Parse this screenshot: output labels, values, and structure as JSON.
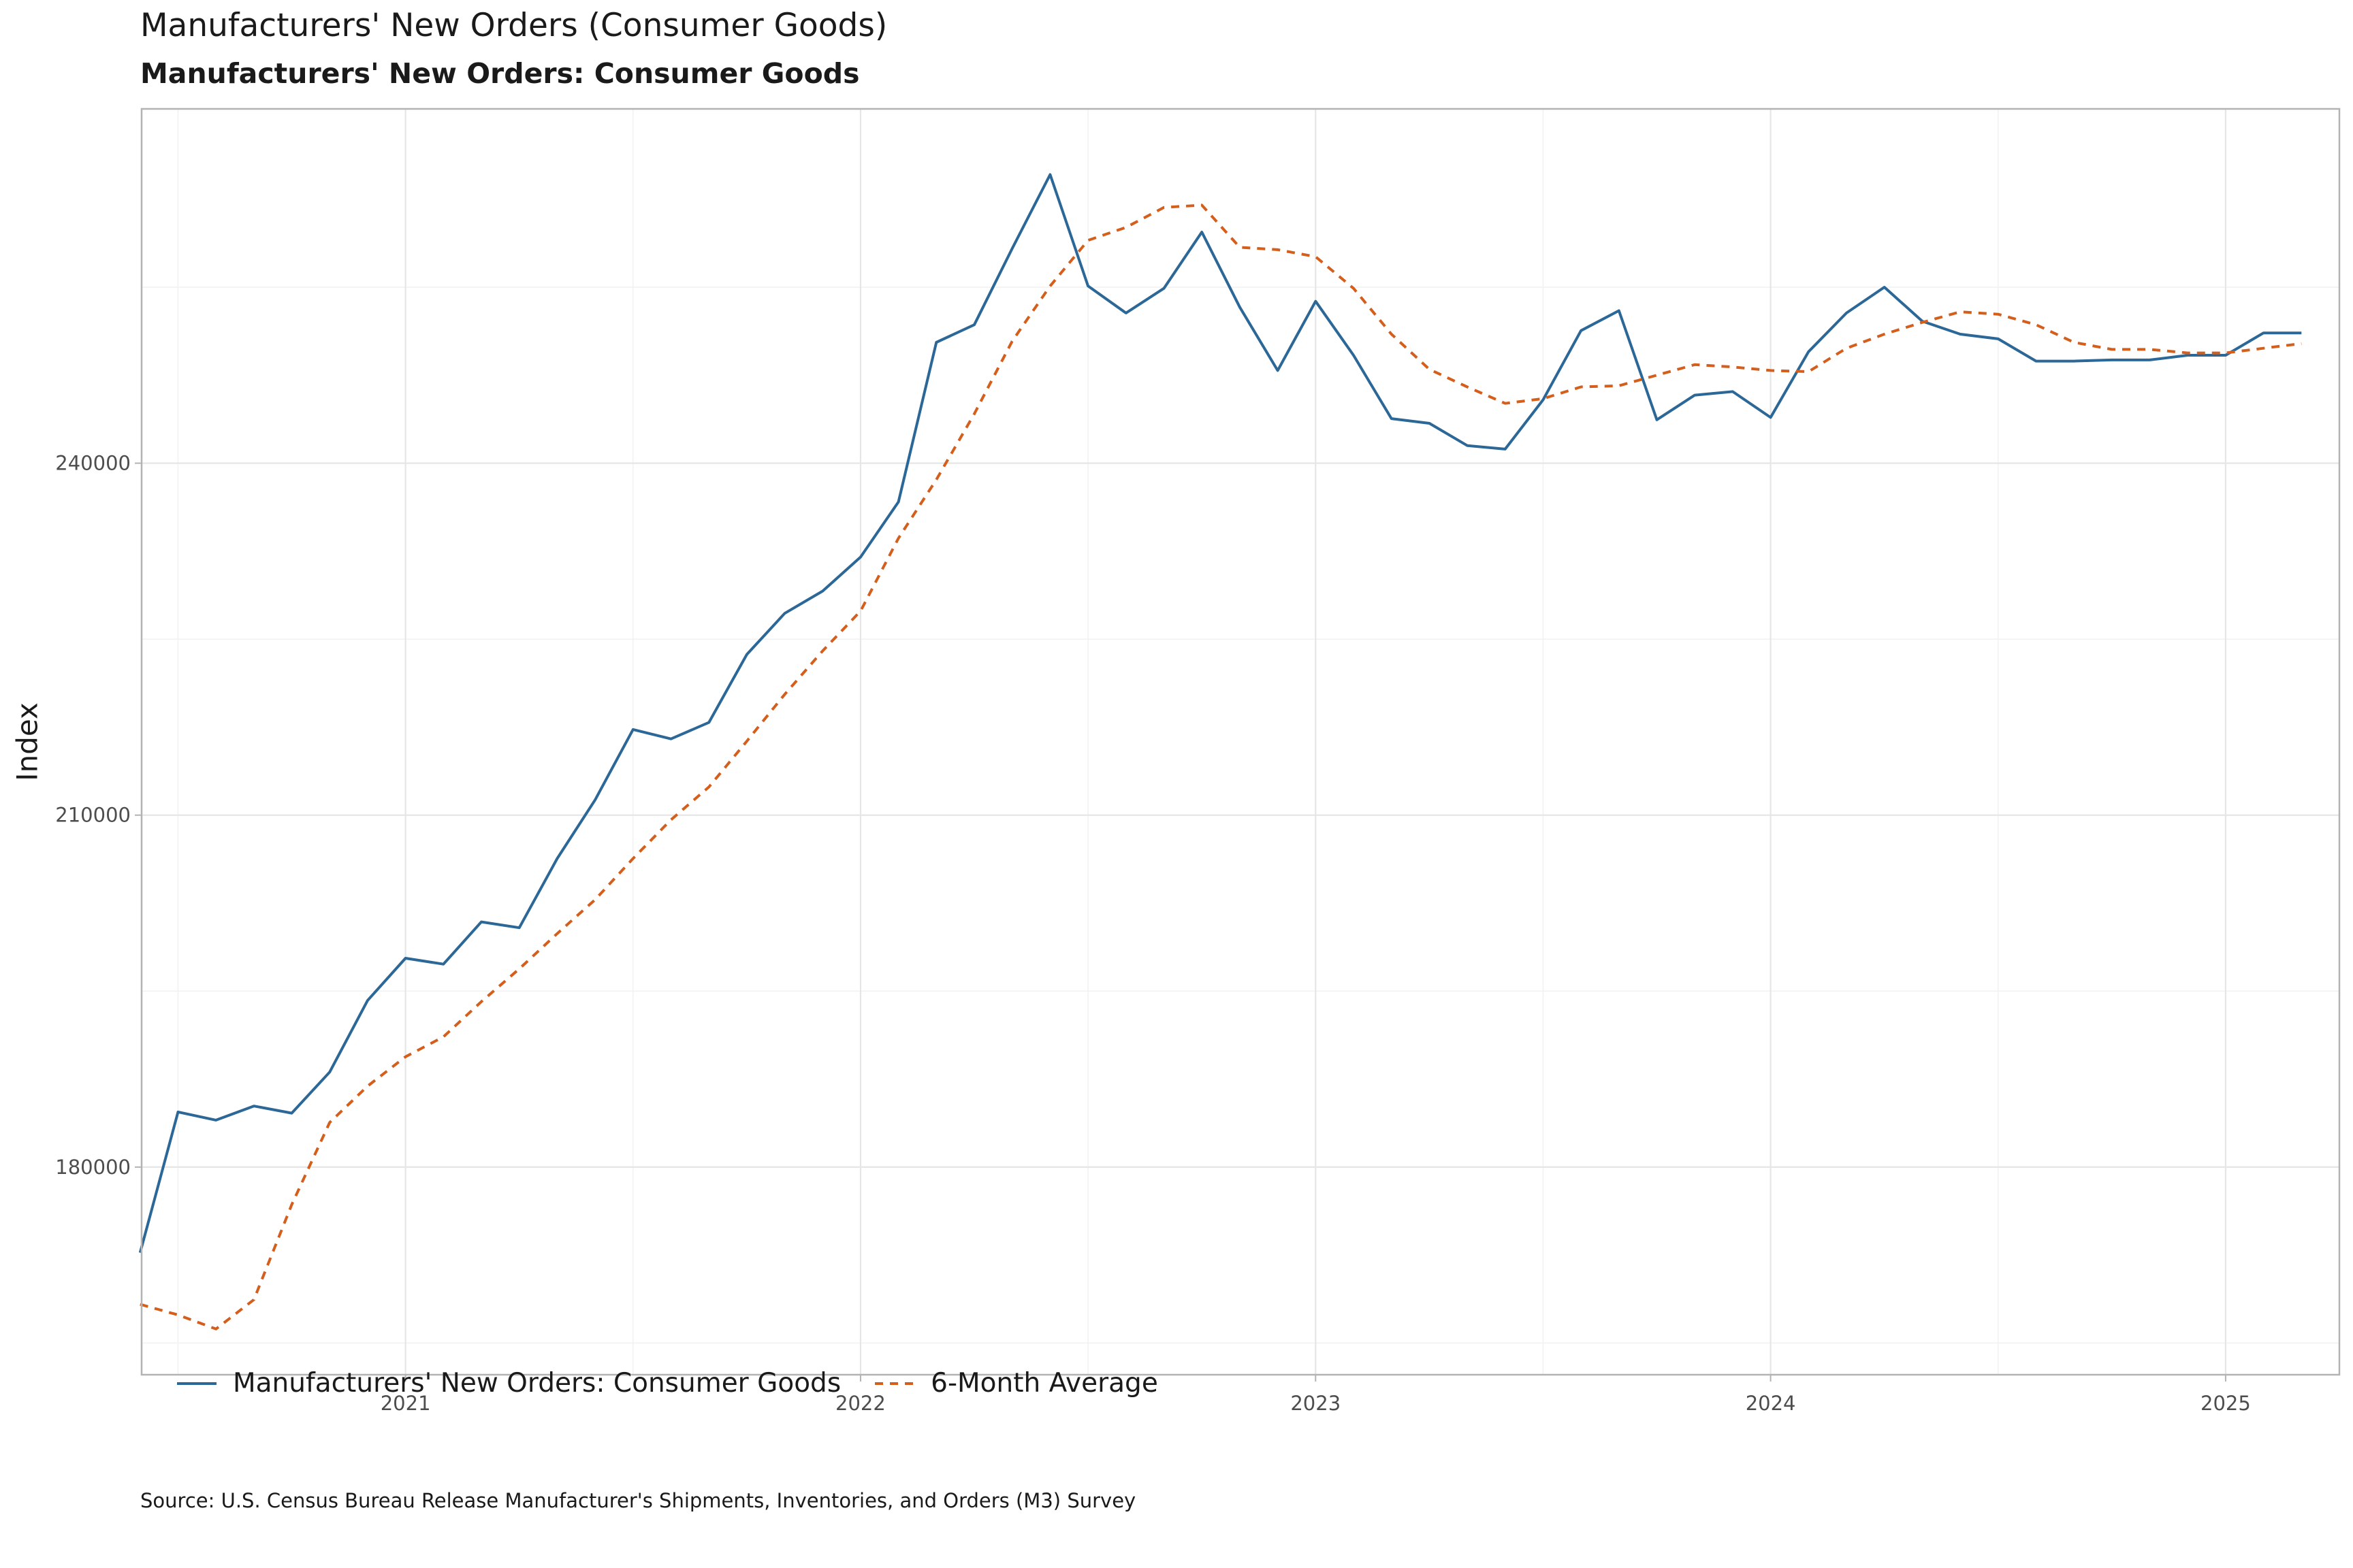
{
  "chart_data": {
    "type": "line",
    "title": "Manufacturers' New Orders (Consumer Goods)",
    "subtitle": "Manufacturers' New Orders: Consumer Goods",
    "xlabel": "",
    "ylabel": "Index",
    "caption": "Source: U.S. Census Bureau Release Manufacturer's Shipments, Inventories, and Orders (M3) Survey",
    "x": [
      "2020-06",
      "2020-07",
      "2020-08",
      "2020-09",
      "2020-10",
      "2020-11",
      "2020-12",
      "2021-01",
      "2021-02",
      "2021-03",
      "2021-04",
      "2021-05",
      "2021-06",
      "2021-07",
      "2021-08",
      "2021-09",
      "2021-10",
      "2021-11",
      "2021-12",
      "2022-01",
      "2022-02",
      "2022-03",
      "2022-04",
      "2022-05",
      "2022-06",
      "2022-07",
      "2022-08",
      "2022-09",
      "2022-10",
      "2022-11",
      "2022-12",
      "2023-01",
      "2023-02",
      "2023-03",
      "2023-04",
      "2023-05",
      "2023-06",
      "2023-07",
      "2023-08",
      "2023-09",
      "2023-10",
      "2023-11",
      "2023-12",
      "2024-01",
      "2024-02",
      "2024-03",
      "2024-04",
      "2024-05",
      "2024-06",
      "2024-07",
      "2024-08",
      "2024-09",
      "2024-10",
      "2024-11",
      "2024-12",
      "2025-01",
      "2025-02",
      "2025-03"
    ],
    "series": [
      {
        "name": "Manufacturers' New Orders: Consumer Goods",
        "color": "#2b6797",
        "dash": "solid",
        "values": [
          172700,
          184700,
          184000,
          185200,
          184600,
          188100,
          194200,
          197800,
          197300,
          200900,
          200400,
          206300,
          211300,
          217300,
          216500,
          217900,
          223700,
          227200,
          229100,
          232000,
          236700,
          250300,
          251800,
          258300,
          264600,
          255100,
          252800,
          254900,
          259700,
          253300,
          247900,
          253800,
          249200,
          243800,
          243400,
          241500,
          241200,
          245400,
          251300,
          253000,
          243700,
          245800,
          246100,
          243900,
          249500,
          252800,
          255000,
          252100,
          251000,
          250600,
          248700,
          248700,
          248800,
          248800,
          249200,
          249200,
          251100,
          251100
        ]
      },
      {
        "name": "6-Month Average",
        "color": "#d45e1c",
        "dash": "dashed",
        "values": [
          168300,
          167400,
          166200,
          168700,
          176800,
          183800,
          186900,
          189400,
          191100,
          194100,
          196900,
          199900,
          202800,
          206300,
          209600,
          212400,
          216300,
          220300,
          224000,
          227400,
          233600,
          238600,
          244200,
          250400,
          255100,
          259000,
          260100,
          261800,
          262000,
          258400,
          258200,
          257600,
          254900,
          251000,
          248000,
          246500,
          245100,
          245500,
          246500,
          246600,
          247500,
          248400,
          248200,
          247900,
          247800,
          249800,
          251000,
          252000,
          252900,
          252700,
          251800,
          250300,
          249700,
          249700,
          249400,
          249400,
          249800,
          250200
        ]
      }
    ],
    "x_tick_labels": [
      "2021",
      "2022",
      "2023",
      "2024",
      "2025"
    ],
    "y_tick_labels": [
      "180000",
      "210000",
      "240000"
    ],
    "ylim": [
      162300,
      270200
    ],
    "grid": true,
    "legend_position": "bottom"
  }
}
